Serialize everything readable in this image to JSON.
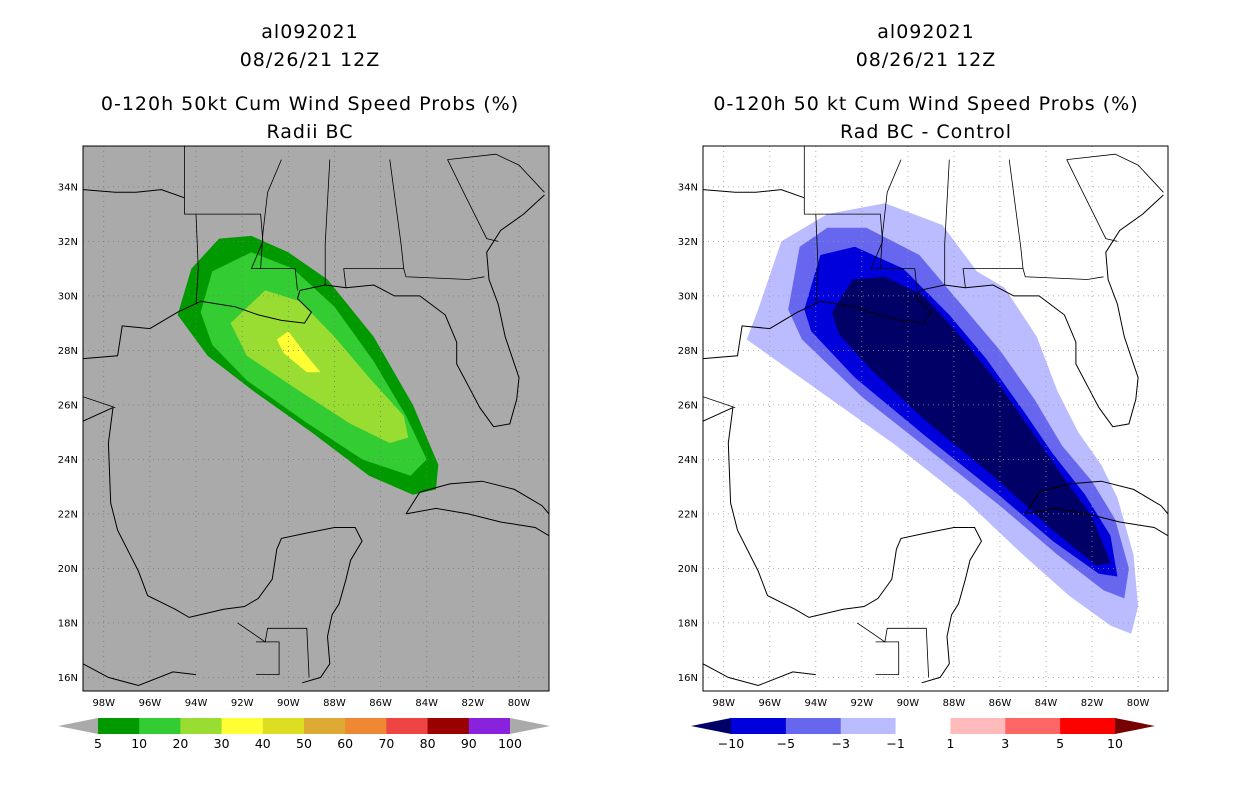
{
  "chart_data": [
    {
      "type": "map",
      "storm_id": "al092021",
      "datetime": "08/26/21 12Z",
      "title": "0-120h 50kt Cum Wind Speed Probs (%)",
      "subtitle": "Radii BC",
      "lon_range": [
        -98.9,
        -78.7
      ],
      "lat_range": [
        15.5,
        35.5
      ],
      "x_ticks": [
        "98W",
        "96W",
        "94W",
        "92W",
        "90W",
        "88W",
        "86W",
        "84W",
        "82W",
        "80W"
      ],
      "y_ticks": [
        "16N",
        "18N",
        "20N",
        "22N",
        "24N",
        "26N",
        "28N",
        "30N",
        "32N",
        "34N"
      ],
      "background": "#aaaaaa",
      "grid": true,
      "colorbar": {
        "labels": [
          "5",
          "10",
          "20",
          "30",
          "40",
          "50",
          "60",
          "70",
          "80",
          "90",
          "100"
        ],
        "colors": [
          "#009900",
          "#33cc33",
          "#99dd33",
          "#ffff33",
          "#dddd22",
          "#ddaa33",
          "#ee8833",
          "#ee4444",
          "#990000",
          "#8822dd"
        ],
        "end_color": "#aaaaaa"
      },
      "levels": [
        {
          "min": 5,
          "color": "#009900",
          "points": [
            [
              -94.8,
              29.3
            ],
            [
              -94.2,
              31.0
            ],
            [
              -93.0,
              32.1
            ],
            [
              -91.6,
              32.2
            ],
            [
              -90.0,
              31.6
            ],
            [
              -88.3,
              30.6
            ],
            [
              -86.3,
              28.5
            ],
            [
              -84.6,
              26.0
            ],
            [
              -83.5,
              23.8
            ],
            [
              -83.6,
              22.9
            ],
            [
              -84.6,
              22.7
            ],
            [
              -86.5,
              23.4
            ],
            [
              -89.0,
              25.0
            ],
            [
              -91.5,
              26.5
            ],
            [
              -93.5,
              27.8
            ]
          ]
        },
        {
          "min": 10,
          "color": "#33cc33",
          "points": [
            [
              -93.8,
              29.4
            ],
            [
              -93.3,
              30.9
            ],
            [
              -91.6,
              31.6
            ],
            [
              -89.8,
              31.0
            ],
            [
              -88.0,
              29.6
            ],
            [
              -86.3,
              27.6
            ],
            [
              -84.9,
              25.6
            ],
            [
              -84.0,
              24.0
            ],
            [
              -84.7,
              23.4
            ],
            [
              -86.8,
              24.0
            ],
            [
              -89.3,
              25.4
            ],
            [
              -91.8,
              26.9
            ],
            [
              -93.3,
              28.2
            ]
          ]
        },
        {
          "min": 20,
          "color": "#99dd33",
          "points": [
            [
              -92.5,
              29.0
            ],
            [
              -91.0,
              30.2
            ],
            [
              -89.5,
              29.8
            ],
            [
              -88.0,
              28.5
            ],
            [
              -86.5,
              27.0
            ],
            [
              -85.0,
              25.6
            ],
            [
              -84.8,
              24.8
            ],
            [
              -85.6,
              24.6
            ],
            [
              -87.3,
              25.3
            ],
            [
              -89.5,
              26.5
            ],
            [
              -91.8,
              27.8
            ]
          ]
        },
        {
          "min": 30,
          "color": "#ffff33",
          "points": [
            [
              -90.5,
              28.4
            ],
            [
              -90.0,
              28.7
            ],
            [
              -89.2,
              27.8
            ],
            [
              -88.6,
              27.2
            ],
            [
              -89.2,
              27.2
            ],
            [
              -90.2,
              27.9
            ]
          ]
        }
      ]
    },
    {
      "type": "map",
      "storm_id": "al092021",
      "datetime": "08/26/21 12Z",
      "title": "0-120h 50 kt Cum Wind Speed Probs (%)",
      "subtitle": "Rad BC - Control",
      "lon_range": [
        -98.9,
        -78.7
      ],
      "lat_range": [
        15.5,
        35.5
      ],
      "x_ticks": [
        "98W",
        "96W",
        "94W",
        "92W",
        "90W",
        "88W",
        "86W",
        "84W",
        "82W",
        "80W"
      ],
      "y_ticks": [
        "16N",
        "18N",
        "20N",
        "22N",
        "24N",
        "26N",
        "28N",
        "30N",
        "32N",
        "34N"
      ],
      "background": "#ffffff",
      "grid": true,
      "colorbar": {
        "labels": [
          "-10",
          "-5",
          "-3",
          "-1",
          "1",
          "3",
          "5",
          "10"
        ],
        "colors": [
          "#0000dd",
          "#6666ee",
          "#bbbbff",
          "#ffffff",
          "#ffbbbb",
          "#ff6666",
          "#ff0000"
        ],
        "end_color_left": "#000066",
        "end_color_right": "#770000"
      },
      "levels": [
        {
          "min": -1,
          "color": "#bbbbff",
          "points": [
            [
              -96.5,
              29.5
            ],
            [
              -95.5,
              32.0
            ],
            [
              -93.5,
              33.0
            ],
            [
              -91.0,
              33.4
            ],
            [
              -88.5,
              32.6
            ],
            [
              -87.0,
              30.9
            ],
            [
              -85.8,
              30.3
            ],
            [
              -84.4,
              28.5
            ],
            [
              -83.5,
              26.5
            ],
            [
              -82.6,
              25.0
            ],
            [
              -81.6,
              23.8
            ],
            [
              -80.9,
              22.6
            ],
            [
              -80.2,
              20.5
            ],
            [
              -80.0,
              18.6
            ],
            [
              -80.3,
              17.6
            ],
            [
              -81.2,
              17.9
            ],
            [
              -83.0,
              19.0
            ],
            [
              -85.0,
              20.5
            ],
            [
              -87.5,
              22.5
            ],
            [
              -90.5,
              24.5
            ],
            [
              -93.0,
              26.0
            ],
            [
              -95.5,
              27.5
            ],
            [
              -97.0,
              28.4
            ]
          ]
        },
        {
          "min": -3,
          "color": "#6666ee",
          "points": [
            [
              -95.2,
              29.5
            ],
            [
              -94.7,
              31.8
            ],
            [
              -93.5,
              32.5
            ],
            [
              -91.8,
              32.5
            ],
            [
              -89.5,
              31.5
            ],
            [
              -87.5,
              29.5
            ],
            [
              -86.0,
              28.0
            ],
            [
              -84.5,
              26.2
            ],
            [
              -83.3,
              24.5
            ],
            [
              -82.0,
              23.2
            ],
            [
              -81.0,
              21.8
            ],
            [
              -80.4,
              20.0
            ],
            [
              -80.6,
              18.9
            ],
            [
              -81.5,
              19.2
            ],
            [
              -83.5,
              20.5
            ],
            [
              -86.0,
              22.3
            ],
            [
              -89.0,
              24.3
            ],
            [
              -92.0,
              26.3
            ],
            [
              -94.6,
              28.4
            ]
          ]
        },
        {
          "min": -5,
          "color": "#0000dd",
          "points": [
            [
              -94.5,
              29.5
            ],
            [
              -93.8,
              31.5
            ],
            [
              -92.3,
              31.8
            ],
            [
              -90.2,
              31.0
            ],
            [
              -88.2,
              29.3
            ],
            [
              -86.6,
              27.7
            ],
            [
              -85.0,
              25.8
            ],
            [
              -83.7,
              24.2
            ],
            [
              -82.3,
              22.7
            ],
            [
              -81.2,
              21.2
            ],
            [
              -80.9,
              19.7
            ],
            [
              -81.7,
              19.8
            ],
            [
              -83.7,
              21.0
            ],
            [
              -86.2,
              22.8
            ],
            [
              -89.3,
              24.9
            ],
            [
              -92.3,
              27.0
            ],
            [
              -94.2,
              28.7
            ]
          ]
        },
        {
          "min": -10,
          "color": "#000066",
          "points": [
            [
              -93.3,
              29.4
            ],
            [
              -92.4,
              30.6
            ],
            [
              -91.0,
              30.7
            ],
            [
              -89.3,
              30.0
            ],
            [
              -87.6,
              28.4
            ],
            [
              -86.0,
              26.7
            ],
            [
              -84.6,
              25.0
            ],
            [
              -83.3,
              23.4
            ],
            [
              -82.0,
              21.9
            ],
            [
              -81.2,
              20.2
            ],
            [
              -81.8,
              20.1
            ],
            [
              -83.7,
              21.4
            ],
            [
              -86.3,
              23.4
            ],
            [
              -89.2,
              25.4
            ],
            [
              -91.6,
              27.3
            ],
            [
              -93.0,
              28.6
            ]
          ]
        }
      ]
    }
  ],
  "panels": [
    {
      "line1": "al092021",
      "line2": "08/26/21 12Z",
      "line3": "0-120h 50kt Cum Wind Speed Probs (%)",
      "line4": "Radii BC"
    },
    {
      "line1": "al092021",
      "line2": "08/26/21 12Z",
      "line3": "0-120h 50 kt Cum Wind Speed Probs (%)",
      "line4": "Rad BC - Control"
    }
  ]
}
